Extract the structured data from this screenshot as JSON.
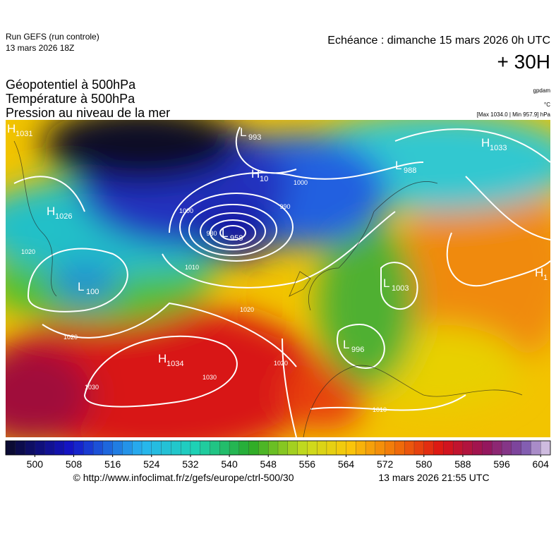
{
  "header": {
    "run": "Run GEFS (run controle)",
    "run_date": "13 mars 2026 18Z",
    "valid": "Echéance : dimanche 15 mars 2026 0h UTC",
    "lead": "+ 30H"
  },
  "fields": {
    "lines": [
      "Géopotentiel à 500hPa",
      "Température à 500hPa",
      "Pression au niveau de la mer"
    ],
    "units": [
      "gpdam",
      "°C",
      "[Max 1034.0 | Min 957.9] hPa"
    ]
  },
  "centers": [
    {
      "letter": "H",
      "value": "1031"
    },
    {
      "letter": "L",
      "value": "993"
    },
    {
      "letter": "H",
      "value": "1033"
    },
    {
      "letter": "H",
      "value": "10"
    },
    {
      "letter": "L",
      "value": "988"
    },
    {
      "letter": "H",
      "value": "1026"
    },
    {
      "letter": "L",
      "value": "958"
    },
    {
      "letter": "L",
      "value": "100"
    },
    {
      "letter": "H",
      "value": "1034"
    },
    {
      "letter": "L",
      "value": "1003"
    },
    {
      "letter": "L",
      "value": "996"
    },
    {
      "letter": "H",
      "value": "1"
    }
  ],
  "isobar_labels": [
    "1000",
    "990",
    "980",
    "1010",
    "1020",
    "1020",
    "1020",
    "1030",
    "1030",
    "1000",
    "1010",
    "1020"
  ],
  "colorbar": {
    "range": [
      494,
      606
    ],
    "ticks": [
      500,
      508,
      516,
      524,
      532,
      540,
      548,
      556,
      564,
      572,
      580,
      588,
      596,
      604
    ]
  },
  "footer": {
    "source": "© http://www.infoclimat.fr/z/gefs/europe/ctrl-500/30",
    "generated": "13 mars 2026 21:55 UTC"
  }
}
